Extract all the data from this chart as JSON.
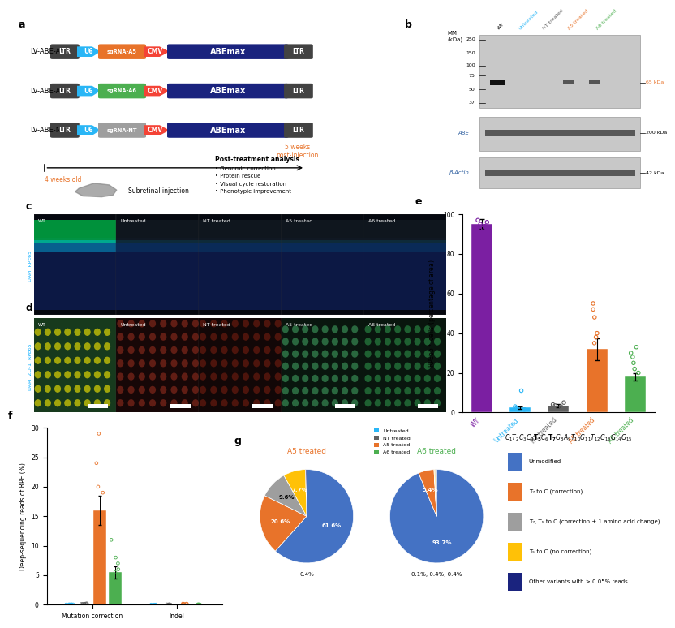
{
  "panel_a": {
    "constructs": [
      {
        "name": "LV-ABE-A5",
        "sgrna": "sgRNA-A5",
        "sgrna_color": "#E8732A"
      },
      {
        "name": "LV-ABE-A6",
        "sgrna": "sgRNA-A6",
        "sgrna_color": "#4CAF50"
      },
      {
        "name": "LV-ABE-NT",
        "sgrna": "sgRNA-NT",
        "sgrna_color": "#9E9E9E"
      }
    ],
    "ltr_color": "#424242",
    "u6_color": "#29B6F6",
    "cmv_color": "#F44336",
    "abemax_color": "#1A237E",
    "analysis_items": [
      "Genomic correction",
      "Protein rescue",
      "Visual cycle restoration",
      "Phenotypic improvement"
    ]
  },
  "panel_e": {
    "categories": [
      "WT",
      "Untreated",
      "NT treated",
      "A5 treated",
      "A6 treated"
    ],
    "bar_heights": [
      95,
      2.5,
      3.5,
      32,
      18
    ],
    "bar_colors": [
      "#7B1FA2",
      "#29B6F6",
      "#616161",
      "#E8732A",
      "#4CAF50"
    ],
    "error_bars": [
      2.5,
      0.7,
      0.8,
      5.5,
      2.0
    ],
    "ylim": [
      0,
      100
    ],
    "yticks": [
      0,
      20,
      40,
      60,
      80,
      100
    ],
    "dot_colors": [
      "#7B1FA2",
      "#29B6F6",
      "#616161",
      "#E8732A",
      "#4CAF50"
    ],
    "dots_wt": [
      95,
      96,
      94,
      93,
      97
    ],
    "dots_untreated": [
      2.0,
      3.0,
      1.5,
      11.0
    ],
    "dots_nt": [
      3.0,
      4.0,
      5.0,
      2.0,
      3.5
    ],
    "dots_a5": [
      55,
      52,
      48,
      40,
      38,
      35
    ],
    "dots_a6": [
      33,
      30,
      28,
      25,
      22,
      20
    ]
  },
  "panel_f": {
    "groups": [
      "Mutation correction",
      "Indel"
    ],
    "group_centers": [
      0.28,
      0.95
    ],
    "categories": [
      "Untreated",
      "NT treated",
      "A5 treated",
      "A6 treated"
    ],
    "bar_colors": [
      "#29B6F6",
      "#616161",
      "#E8732A",
      "#4CAF50"
    ],
    "mutation_means": [
      0.05,
      0.12,
      16.0,
      5.5
    ],
    "mutation_errors": [
      0.02,
      0.05,
      2.5,
      1.0
    ],
    "indel_means": [
      0.02,
      0.04,
      0.12,
      0.04
    ],
    "indel_errors": [
      0.01,
      0.02,
      0.04,
      0.02
    ],
    "ylim": [
      0,
      30
    ],
    "yticks": [
      0,
      5,
      10,
      15,
      20,
      25,
      30
    ],
    "bar_width": 0.12
  },
  "panel_g": {
    "a5_values": [
      61.6,
      20.6,
      9.6,
      7.7,
      0.4
    ],
    "a6_values": [
      93.7,
      5.4,
      0.1,
      0.4,
      0.4
    ],
    "colors": [
      "#4472C4",
      "#E8732A",
      "#9E9E9E",
      "#FFC107",
      "#1A237E"
    ],
    "legend_labels": [
      "Unmodified",
      "T₇ to C (correction)",
      "T₇, T₅ to C (correction + 1 amino acid change)",
      "T₅ to C (no correction)",
      "Other variants with > 0.05% reads"
    ]
  },
  "panel_b": {
    "mw_labels": [
      "250",
      "150",
      "100",
      "75",
      "50",
      "37"
    ],
    "col_labels": [
      "WT",
      "Untreated",
      "NT treated",
      "A5 treated",
      "A6 treated"
    ],
    "col_colors": [
      "black",
      "#29B6F6",
      "#616161",
      "#E8732A",
      "#4CAF50"
    ]
  }
}
